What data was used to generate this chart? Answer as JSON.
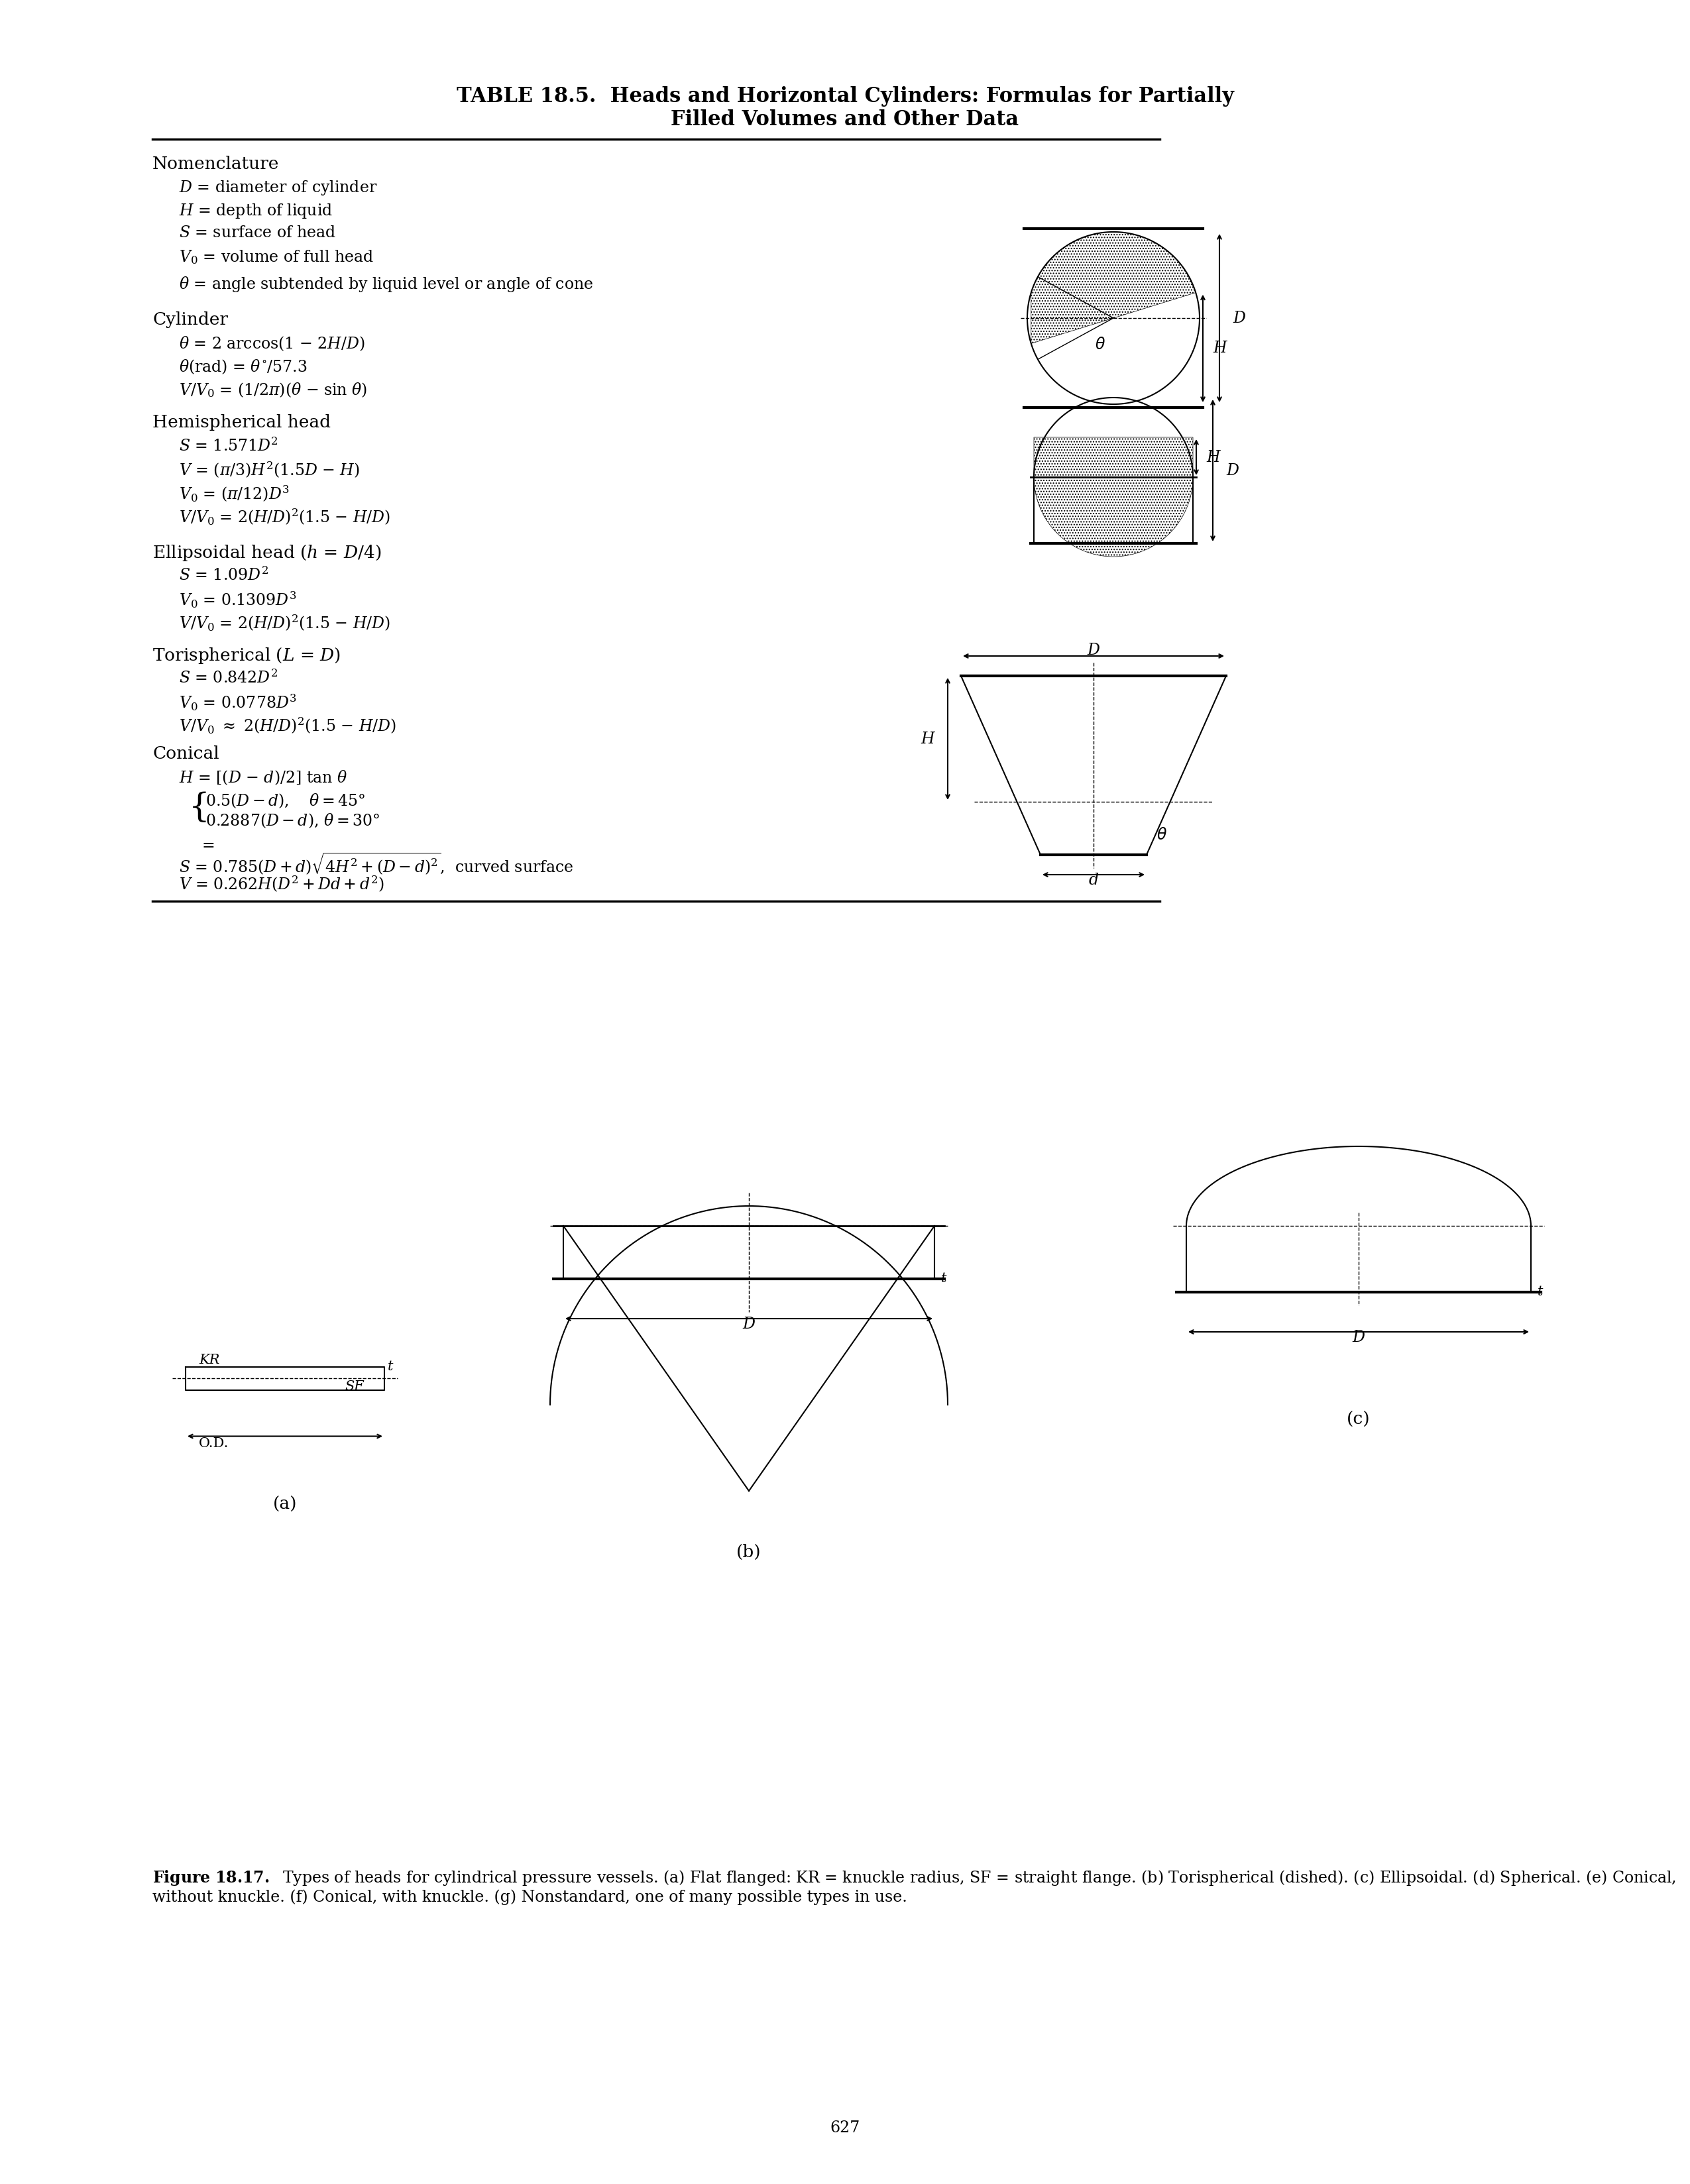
{
  "title_line1": "TABLE 18.5.  Heads and Horizontal Cylinders: Formulas for Partially",
  "title_line2": "Filled Volumes and Other Data",
  "bg_color": "#ffffff",
  "text_color": "#000000",
  "page_number": "627",
  "figure_caption": "Figure 18.17.  Types of heads for cylindrical pressure vessels. (a) Flat flanged: KR = knuckle radius, SF = straight flange. (b) Torispherical (dished). (c) Ellipsoidal. (d) Spherical. (e) Conical, without knuckle. (f) Conical, with knuckle. (g) Nonstandard, one of many possible types in use."
}
